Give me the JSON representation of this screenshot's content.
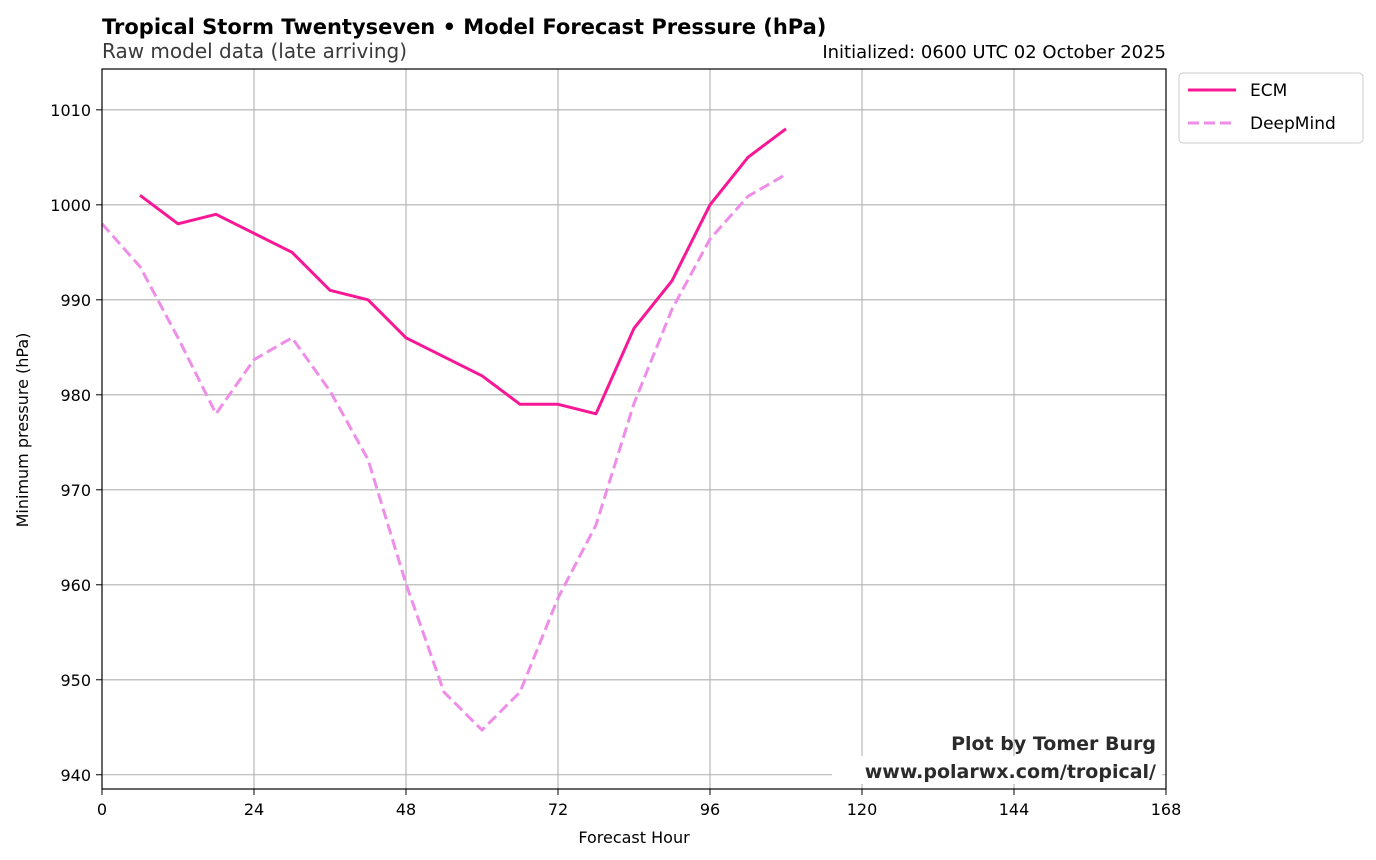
{
  "colors": {
    "ecm": "#f81896",
    "deepmind": "#ee8ee8",
    "grid": "#b0b0b0",
    "axis": "#000000"
  },
  "chart_data": {
    "type": "line",
    "title": "Tropical Storm Twentyseven • Model Forecast Pressure (hPa)",
    "subtitle": "Raw model data (late arriving)",
    "initialized": "Initialized: 0600 UTC 02 October 2025",
    "xlabel": "Forecast Hour",
    "ylabel": "Minimum pressure (hPa)",
    "xlim": [
      0,
      168
    ],
    "ylim": [
      938.5,
      1014.3
    ],
    "xticks": [
      0,
      24,
      48,
      72,
      96,
      120,
      144,
      168
    ],
    "xtick_labels": [
      "0",
      "24",
      "48",
      "72",
      "96",
      "120",
      "144",
      "168"
    ],
    "yticks": [
      940,
      950,
      960,
      970,
      980,
      990,
      1000,
      1010
    ],
    "ytick_labels": [
      "940",
      "950",
      "960",
      "970",
      "980",
      "990",
      "1000",
      "1010"
    ],
    "grid": true,
    "legend_position": "outside-top-right",
    "series": [
      {
        "name": "ECM",
        "style": "solid",
        "x": [
          6,
          12,
          18,
          24,
          30,
          36,
          42,
          48,
          54,
          60,
          66,
          72,
          78,
          84,
          90,
          96,
          102,
          108
        ],
        "y": [
          1001,
          998,
          999,
          997,
          995,
          991,
          990,
          986,
          984,
          982,
          979,
          979,
          978,
          987,
          992,
          1000,
          1005,
          1008
        ]
      },
      {
        "name": "DeepMind",
        "style": "dashed",
        "x": [
          0,
          6,
          12,
          18,
          24,
          30,
          36,
          42,
          48,
          54,
          60,
          66,
          72,
          78,
          84,
          90,
          96,
          102,
          108
        ],
        "y": [
          998,
          993.5,
          986,
          978,
          983.7,
          986,
          980.4,
          973.2,
          960.1,
          948.7,
          944.7,
          948.7,
          958.6,
          966.3,
          979.1,
          989,
          996.4,
          1000.9,
          1003.2
        ]
      }
    ]
  },
  "credit": {
    "line1": "Plot by Tomer Burg",
    "line2": "www.polarwx.com/tropical/"
  }
}
